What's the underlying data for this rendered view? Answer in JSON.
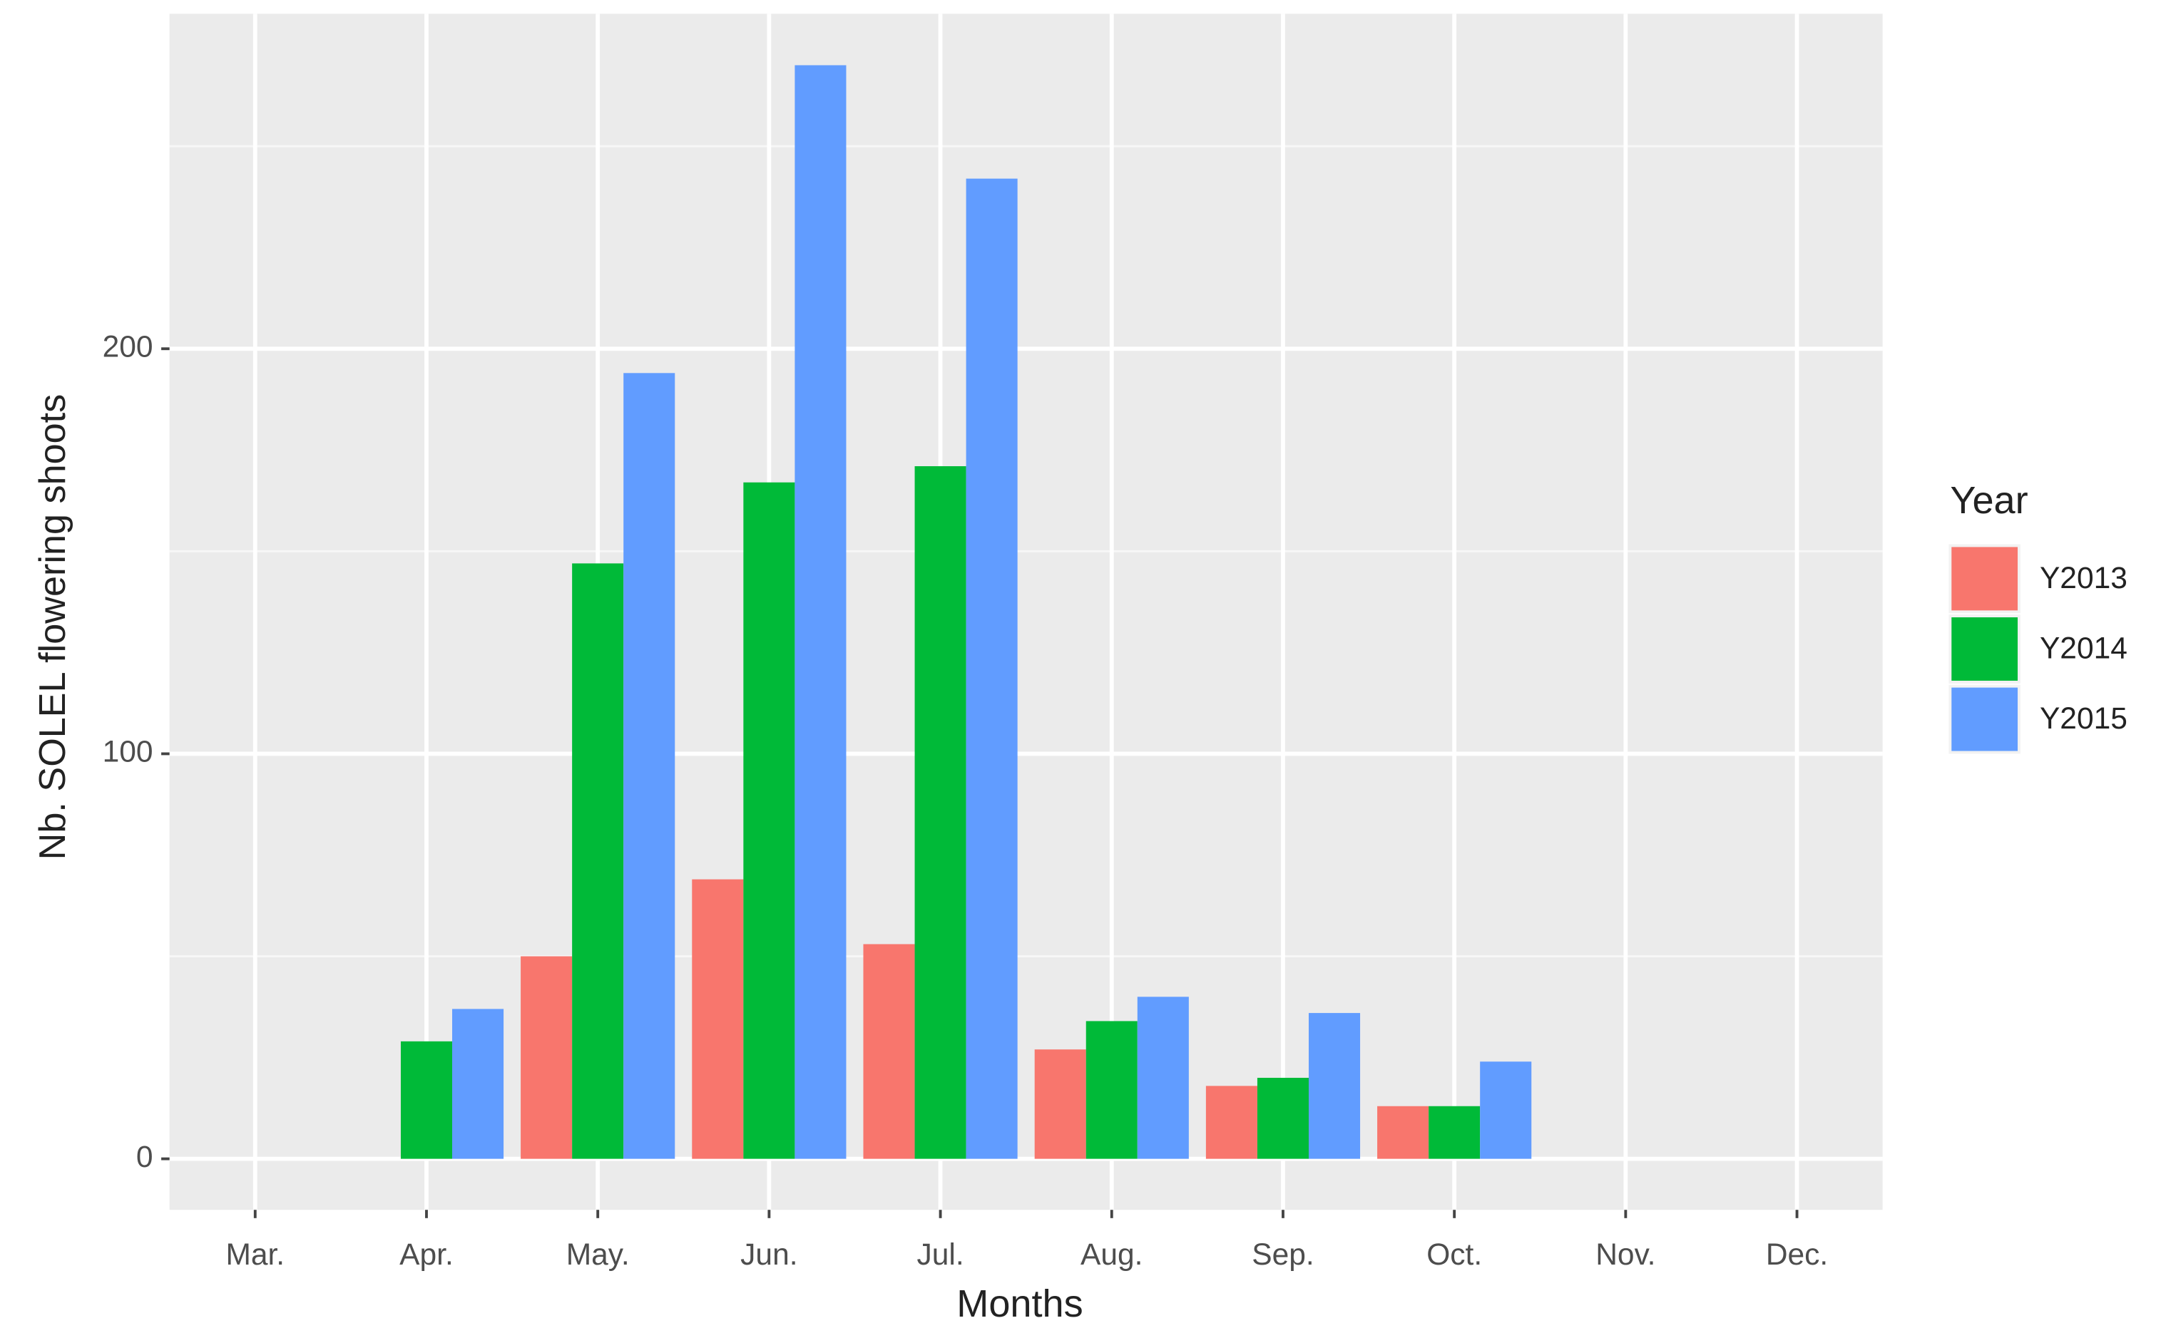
{
  "chart_data": {
    "type": "bar",
    "x_label": "Months",
    "y_label": "Nb. SOLEL flowering shoots",
    "legend_title": "Year",
    "legend_position": "right",
    "grid": true,
    "categories": [
      "Mar.",
      "Apr.",
      "May.",
      "Jun.",
      "Jul.",
      "Aug.",
      "Sep.",
      "Oct.",
      "Nov.",
      "Dec."
    ],
    "series": [
      {
        "name": "Y2013",
        "color": "#F8766D",
        "values": [
          null,
          null,
          50,
          69,
          53,
          27,
          18,
          13,
          null,
          null
        ]
      },
      {
        "name": "Y2014",
        "color": "#00BA38",
        "values": [
          null,
          29,
          147,
          167,
          171,
          34,
          20,
          13,
          null,
          null
        ]
      },
      {
        "name": "Y2015",
        "color": "#619CFF",
        "values": [
          null,
          37,
          194,
          270,
          242,
          40,
          36,
          24,
          null,
          null
        ]
      }
    ],
    "ylim": [
      -12.6,
      282.7
    ],
    "yticks": [
      0,
      100,
      200
    ]
  }
}
